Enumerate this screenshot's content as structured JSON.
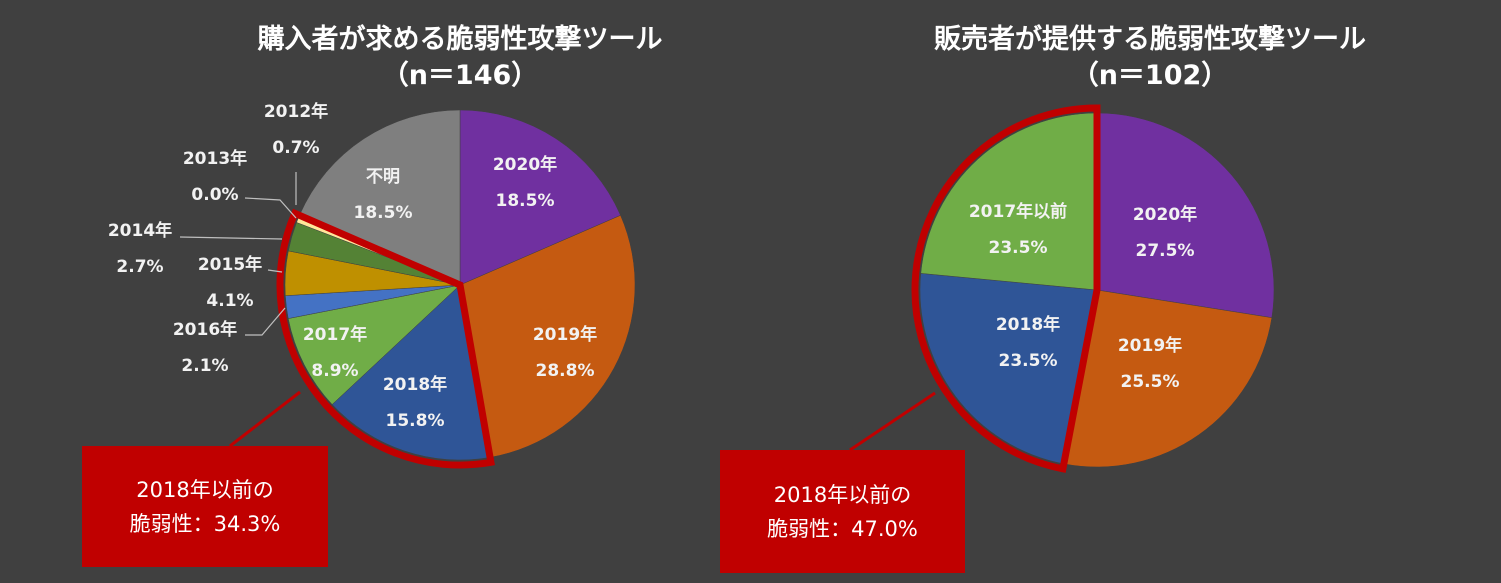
{
  "chart_data": [
    {
      "type": "pie",
      "title": "購入者が求める脆弱性攻撃ツール",
      "subtitle": "（n＝146）",
      "slices": [
        {
          "label": "2020年",
          "value": 18.5,
          "display": "18.5%",
          "color": "#7030a0"
        },
        {
          "label": "2019年",
          "value": 28.8,
          "display": "28.8%",
          "color": "#c55a11"
        },
        {
          "label": "2018年",
          "value": 15.8,
          "display": "15.8%",
          "color": "#2f5597"
        },
        {
          "label": "2017年",
          "value": 8.9,
          "display": "8.9%",
          "color": "#70ad47"
        },
        {
          "label": "2016年",
          "value": 2.1,
          "display": "2.1%",
          "color": "#4472c4"
        },
        {
          "label": "2015年",
          "value": 4.1,
          "display": "4.1%",
          "color": "#bf9000"
        },
        {
          "label": "2014年",
          "value": 2.7,
          "display": "2.7%",
          "color": "#548235"
        },
        {
          "label": "2013年",
          "value": 0.0,
          "display": "0.0%",
          "color": "#a9d18e"
        },
        {
          "label": "2012年",
          "value": 0.7,
          "display": "0.7%",
          "color": "#ffe699"
        },
        {
          "label": "不明",
          "value": 18.5,
          "display": "18.5%",
          "color": "#7f7f7f"
        }
      ],
      "highlight": {
        "line1": "2018年以前の",
        "line2": "脆弱性：34.3%"
      }
    },
    {
      "type": "pie",
      "title": "販売者が提供する脆弱性攻撃ツール",
      "subtitle": "（n＝102）",
      "slices": [
        {
          "label": "2020年",
          "value": 27.5,
          "display": "27.5%",
          "color": "#7030a0"
        },
        {
          "label": "2019年",
          "value": 25.5,
          "display": "25.5%",
          "color": "#c55a11"
        },
        {
          "label": "2018年",
          "value": 23.5,
          "display": "23.5%",
          "color": "#2f5597"
        },
        {
          "label": "2017年以前",
          "value": 23.5,
          "display": "23.5%",
          "color": "#70ad47"
        }
      ],
      "highlight": {
        "line1": "2018年以前の",
        "line2": "脆弱性：47.0%"
      }
    }
  ]
}
